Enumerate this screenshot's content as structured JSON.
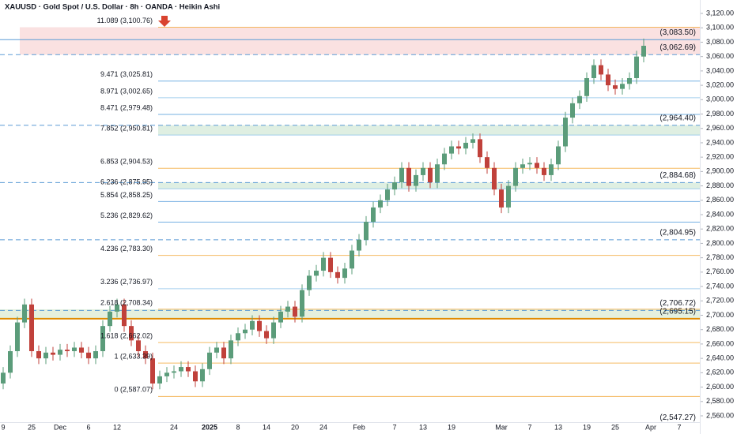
{
  "chart_data": {
    "type": "candlestick",
    "title": "XAUUSD · Gold Spot / U.S. Dollar · 8h · OANDA · Heikin Ashi",
    "up_color": "#5b9c7a",
    "down_color": "#c0413b",
    "categories": [
      "9",
      null,
      null,
      null,
      "25",
      null,
      null,
      null,
      "Dec",
      null,
      null,
      null,
      "6",
      null,
      null,
      null,
      "12",
      null,
      null,
      null,
      null,
      null,
      null,
      null,
      "24",
      null,
      null,
      null,
      null,
      "2025",
      null,
      null,
      null,
      "8",
      null,
      null,
      null,
      "14",
      null,
      null,
      null,
      "20",
      null,
      null,
      null,
      "24",
      null,
      null,
      null,
      null,
      "Feb",
      null,
      null,
      null,
      null,
      "7",
      null,
      null,
      null,
      "13",
      null,
      null,
      null,
      "19",
      null,
      null,
      null,
      null,
      null,
      null,
      "Mar",
      null,
      null,
      null,
      "7",
      null,
      null,
      null,
      "13",
      null,
      null,
      null,
      "19",
      null,
      null,
      null,
      "25",
      null,
      null,
      null,
      null,
      "Apr",
      null,
      null,
      null,
      "7"
    ],
    "open": [
      2605,
      2620,
      2650,
      2690,
      2715,
      2650,
      2640,
      2648,
      2645,
      2652,
      2650,
      2655,
      2648,
      2640,
      2650,
      2685,
      2705,
      2715,
      2685,
      2665,
      2650,
      2640,
      2605,
      2615,
      2620,
      2622,
      2628,
      2622,
      2608,
      2625,
      2648,
      2655,
      2640,
      2665,
      2675,
      2680,
      2692,
      2678,
      2668,
      2690,
      2705,
      2712,
      2698,
      2735,
      2755,
      2762,
      2780,
      2760,
      2752,
      2765,
      2790,
      2805,
      2830,
      2850,
      2860,
      2875,
      2885,
      2905,
      2880,
      2895,
      2905,
      2885,
      2910,
      2925,
      2935,
      2932,
      2940,
      2945,
      2920,
      2905,
      2875,
      2850,
      2880,
      2905,
      2910,
      2912,
      2905,
      2895,
      2910,
      2935,
      2975,
      2995,
      3005,
      3030,
      3048,
      3035,
      3020,
      3015,
      3022,
      3030,
      3060,
      null,
      null,
      null,
      null,
      null
    ],
    "high": [
      2628,
      2658,
      2698,
      2723,
      2723,
      2658,
      2656,
      2656,
      2660,
      2660,
      2663,
      2663,
      2656,
      2658,
      2693,
      2713,
      2723,
      2723,
      2693,
      2673,
      2658,
      2648,
      2623,
      2628,
      2630,
      2636,
      2636,
      2630,
      2633,
      2656,
      2663,
      2663,
      2673,
      2683,
      2688,
      2700,
      2700,
      2686,
      2698,
      2713,
      2720,
      2720,
      2743,
      2763,
      2770,
      2788,
      2788,
      2768,
      2773,
      2798,
      2813,
      2838,
      2858,
      2868,
      2883,
      2893,
      2913,
      2913,
      2903,
      2913,
      2913,
      2918,
      2933,
      2943,
      2943,
      2948,
      2953,
      2953,
      2928,
      2913,
      2883,
      2888,
      2913,
      2918,
      2920,
      2920,
      2913,
      2918,
      2943,
      2983,
      3003,
      3013,
      3038,
      3056,
      3056,
      3043,
      3028,
      3030,
      3038,
      3068,
      3085,
      null,
      null,
      null,
      null,
      null
    ],
    "low": [
      2597,
      2612,
      2642,
      2682,
      2642,
      2632,
      2632,
      2637,
      2637,
      2642,
      2642,
      2640,
      2632,
      2632,
      2642,
      2677,
      2697,
      2677,
      2657,
      2642,
      2632,
      2597,
      2597,
      2607,
      2612,
      2614,
      2614,
      2600,
      2600,
      2617,
      2640,
      2632,
      2632,
      2657,
      2667,
      2672,
      2670,
      2660,
      2660,
      2682,
      2697,
      2690,
      2690,
      2727,
      2747,
      2754,
      2752,
      2744,
      2744,
      2757,
      2782,
      2797,
      2822,
      2842,
      2852,
      2867,
      2877,
      2872,
      2872,
      2887,
      2877,
      2877,
      2902,
      2917,
      2924,
      2924,
      2932,
      2912,
      2897,
      2867,
      2842,
      2842,
      2872,
      2897,
      2902,
      2897,
      2887,
      2887,
      2902,
      2927,
      2967,
      2987,
      2997,
      3022,
      3027,
      3012,
      3007,
      3007,
      3014,
      3022,
      3052,
      null,
      null,
      null,
      null,
      null
    ],
    "close": [
      2620,
      2650,
      2690,
      2715,
      2650,
      2640,
      2648,
      2645,
      2652,
      2650,
      2655,
      2648,
      2640,
      2650,
      2685,
      2705,
      2715,
      2685,
      2665,
      2650,
      2640,
      2605,
      2615,
      2620,
      2622,
      2628,
      2622,
      2608,
      2625,
      2648,
      2655,
      2640,
      2665,
      2675,
      2680,
      2692,
      2678,
      2668,
      2690,
      2705,
      2712,
      2698,
      2735,
      2755,
      2762,
      2780,
      2760,
      2752,
      2765,
      2790,
      2805,
      2830,
      2850,
      2860,
      2875,
      2885,
      2905,
      2880,
      2895,
      2905,
      2885,
      2910,
      2925,
      2935,
      2932,
      2940,
      2945,
      2920,
      2905,
      2875,
      2850,
      2880,
      2905,
      2910,
      2912,
      2905,
      2895,
      2910,
      2935,
      2975,
      2995,
      3005,
      3030,
      3048,
      3035,
      3020,
      3015,
      3022,
      3030,
      3060,
      3075,
      null,
      null,
      null,
      null,
      null
    ],
    "ylim": [
      2551.2,
      3138.7
    ],
    "yticks": [
      {
        "value": 2560,
        "label": "2,560.00"
      },
      {
        "value": 2580,
        "label": "2,580.00"
      },
      {
        "value": 2600,
        "label": "2,600.00"
      },
      {
        "value": 2620,
        "label": "2,620.00"
      },
      {
        "value": 2640,
        "label": "2,640.00"
      },
      {
        "value": 2660,
        "label": "2,660.00"
      },
      {
        "value": 2680,
        "label": "2,680.00"
      },
      {
        "value": 2700,
        "label": "2,700.00"
      },
      {
        "value": 2720,
        "label": "2,720.00"
      },
      {
        "value": 2740,
        "label": "2,740.00"
      },
      {
        "value": 2760,
        "label": "2,760.00"
      },
      {
        "value": 2780,
        "label": "2,780.00"
      },
      {
        "value": 2800,
        "label": "2,800.00"
      },
      {
        "value": 2820,
        "label": "2,820.00"
      },
      {
        "value": 2840,
        "label": "2,840.00"
      },
      {
        "value": 2860,
        "label": "2,860.00"
      },
      {
        "value": 2880,
        "label": "2,880.00"
      },
      {
        "value": 2900,
        "label": "2,900.00"
      },
      {
        "value": 2920,
        "label": "2,920.00"
      },
      {
        "value": 2940,
        "label": "2,940.00"
      },
      {
        "value": 2960,
        "label": "2,960.00"
      },
      {
        "value": 2980,
        "label": "2,980.00"
      },
      {
        "value": 3000,
        "label": "3,000.00"
      },
      {
        "value": 3020,
        "label": "3,020.00"
      },
      {
        "value": 3040,
        "label": "3,040.00"
      },
      {
        "value": 3060,
        "label": "3,060.00"
      },
      {
        "value": 3080,
        "label": "3,080.00"
      },
      {
        "value": 3100,
        "label": "3,100.00"
      },
      {
        "value": 3120,
        "label": "3,120.00"
      }
    ],
    "zones": [
      {
        "from": 3062.69,
        "to": 3100.76,
        "color": "#f8d7d7"
      },
      {
        "from": 2950.81,
        "to": 2964.4,
        "color": "#d4ead8"
      },
      {
        "from": 2875.95,
        "to": 2884.68,
        "color": "#d4ead8"
      },
      {
        "from": 2695.15,
        "to": 2708.34,
        "color": "#dcebd3"
      }
    ],
    "fib_levels": [
      {
        "label": "11.089 (3,100.76)",
        "value": 3100.76,
        "color": "#f29d1f"
      },
      {
        "label": "9.471 (3,025.81)",
        "value": 3025.81,
        "color": "#3d8fd6"
      },
      {
        "label": "8.971 (3,002.65)",
        "value": 3002.65,
        "color": "#7fbbe8"
      },
      {
        "label": "8.471 (2,979.48)",
        "value": 2979.48,
        "color": "#3d8fd6"
      },
      {
        "label": "7.852 (2,950.81)",
        "value": 2950.81,
        "color": "#7fbbe8"
      },
      {
        "label": "6.853 (2,904.53)",
        "value": 2904.53,
        "color": "#f29d1f"
      },
      {
        "label": "6.236 (2,875.95)",
        "value": 2875.95,
        "color": "#7fbbe8"
      },
      {
        "label": "5.854 (2,858.25)",
        "value": 2858.25,
        "color": "#3d8fd6"
      },
      {
        "label": "5.236 (2,829.62)",
        "value": 2829.62,
        "color": "#3d8fd6"
      },
      {
        "label": "4.236 (2,783.30)",
        "value": 2783.3,
        "color": "#f29d1f"
      },
      {
        "label": "3.236 (2,736.97)",
        "value": 2736.97,
        "color": "#7fbbe8"
      },
      {
        "label": "2.618 (2,708.34)",
        "value": 2708.34,
        "color": "#f29d1f"
      },
      {
        "label": "1.618 (2,662.02)",
        "value": 2662.02,
        "color": "#f29d1f"
      },
      {
        "label": "1 (2,633.39)",
        "value": 2633.39,
        "color": "#f29d1f"
      },
      {
        "label": "0 (2,587.07)",
        "value": 2587.07,
        "color": "#f29d1f"
      }
    ],
    "price_lines": [
      {
        "label": "(3,083.50)",
        "value": 3083.5,
        "color": "#5b9bd5",
        "style": "solid"
      },
      {
        "label": "(3,062.69)",
        "value": 3062.69,
        "color": "#5b9bd5",
        "style": "dashed"
      },
      {
        "label": "(2,964.40)",
        "value": 2964.4,
        "color": "#5b9bd5",
        "style": "dashed"
      },
      {
        "label": "(2,884.68)",
        "value": 2884.68,
        "color": "#5b9bd5",
        "style": "dashed"
      },
      {
        "label": "(2,804.95)",
        "value": 2804.95,
        "color": "#5b9bd5",
        "style": "dashed"
      },
      {
        "label": "(2,706.72)",
        "value": 2706.72,
        "color": "#5b9bd5",
        "style": "dashed"
      },
      {
        "label": "(2,695.15)",
        "value": 2695.15,
        "color": "#e08a00",
        "style": "solid"
      },
      {
        "label": "(2,547.27)",
        "value": 2547.27,
        "color": "#e08a00",
        "style": "solid"
      }
    ]
  }
}
